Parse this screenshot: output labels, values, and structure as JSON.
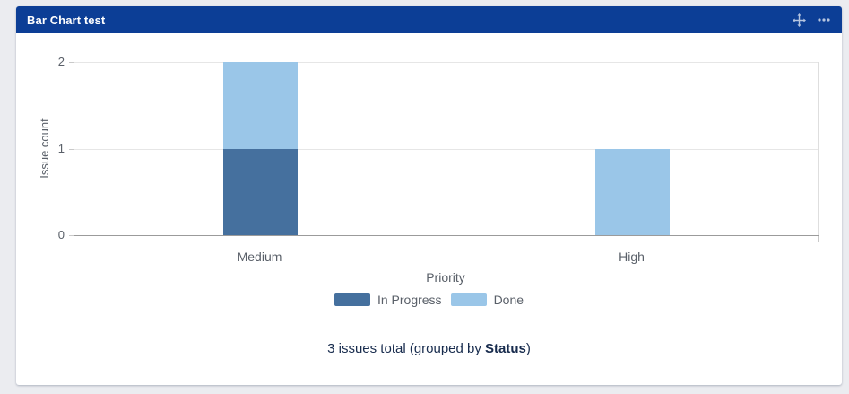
{
  "gadget": {
    "title": "Bar Chart test",
    "header_icons": [
      "move-icon",
      "more-options-icon"
    ]
  },
  "chart_data": {
    "type": "bar",
    "stacked": true,
    "categories": [
      "Medium",
      "High"
    ],
    "series": [
      {
        "name": "In Progress",
        "color": "#45709e",
        "values": [
          1,
          0
        ]
      },
      {
        "name": "Done",
        "color": "#9ac6e8",
        "values": [
          1,
          1
        ]
      }
    ],
    "title": "",
    "xlabel": "Priority",
    "ylabel": "Issue count",
    "ylim": [
      0,
      2
    ],
    "yticks": [
      0,
      1,
      2
    ],
    "grid": true,
    "legend_position": "bottom"
  },
  "footer": {
    "prefix": "3 issues total (grouped by ",
    "bold": "Status",
    "suffix": ")"
  },
  "colors": {
    "page_bg": "#ebecf0",
    "card_bg": "#ffffff",
    "header_bg": "#0c3e96",
    "header_text": "#ffffff",
    "axis_text": "#5a6069",
    "footer_text": "#172b4d"
  }
}
